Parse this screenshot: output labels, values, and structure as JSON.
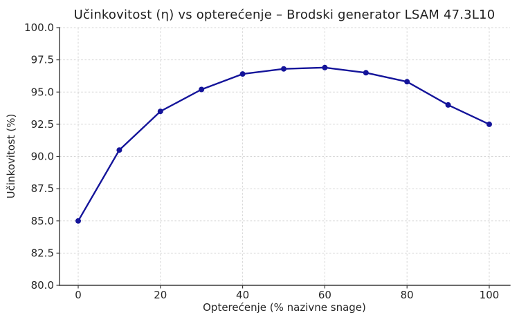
{
  "header": {
    "title": "Učinkovitost (η) vs opterećenje – Brodski generator LSAM 47.3L10"
  },
  "chart_data": {
    "type": "line",
    "title": "Učinkovitost (η) vs opterećenje – Brodski generator LSAM 47.3L10",
    "xlabel": "Opterećenje (% nazivne snage)",
    "ylabel": "Učinkovitost (%)",
    "x": [
      0,
      10,
      20,
      30,
      40,
      50,
      60,
      70,
      80,
      90,
      100
    ],
    "series": [
      {
        "name": "Učinkovitost",
        "values": [
          85.0,
          90.5,
          93.5,
          95.2,
          96.4,
          96.8,
          96.9,
          96.5,
          95.8,
          94.0,
          92.5
        ]
      }
    ],
    "xticks": [
      0,
      20,
      40,
      60,
      80,
      100
    ],
    "xtick_labels": [
      "0",
      "20",
      "40",
      "60",
      "80",
      "100"
    ],
    "yticks": [
      80,
      82.5,
      85,
      87.5,
      90,
      92.5,
      95,
      97.5,
      100
    ],
    "ytick_labels": [
      "80.0",
      "82.5",
      "85.0",
      "87.5",
      "90.0",
      "92.5",
      "95.0",
      "97.5",
      "100.0"
    ],
    "xlim": [
      -4.5,
      105
    ],
    "ylim": [
      80,
      100
    ],
    "grid": true,
    "grid_style": "dashed",
    "legend": null,
    "colors": {
      "line": "#14149a",
      "marker": "#14149a",
      "grid": "#d6d6d6",
      "spine": "#3a3a3a",
      "text": "#262626"
    }
  }
}
